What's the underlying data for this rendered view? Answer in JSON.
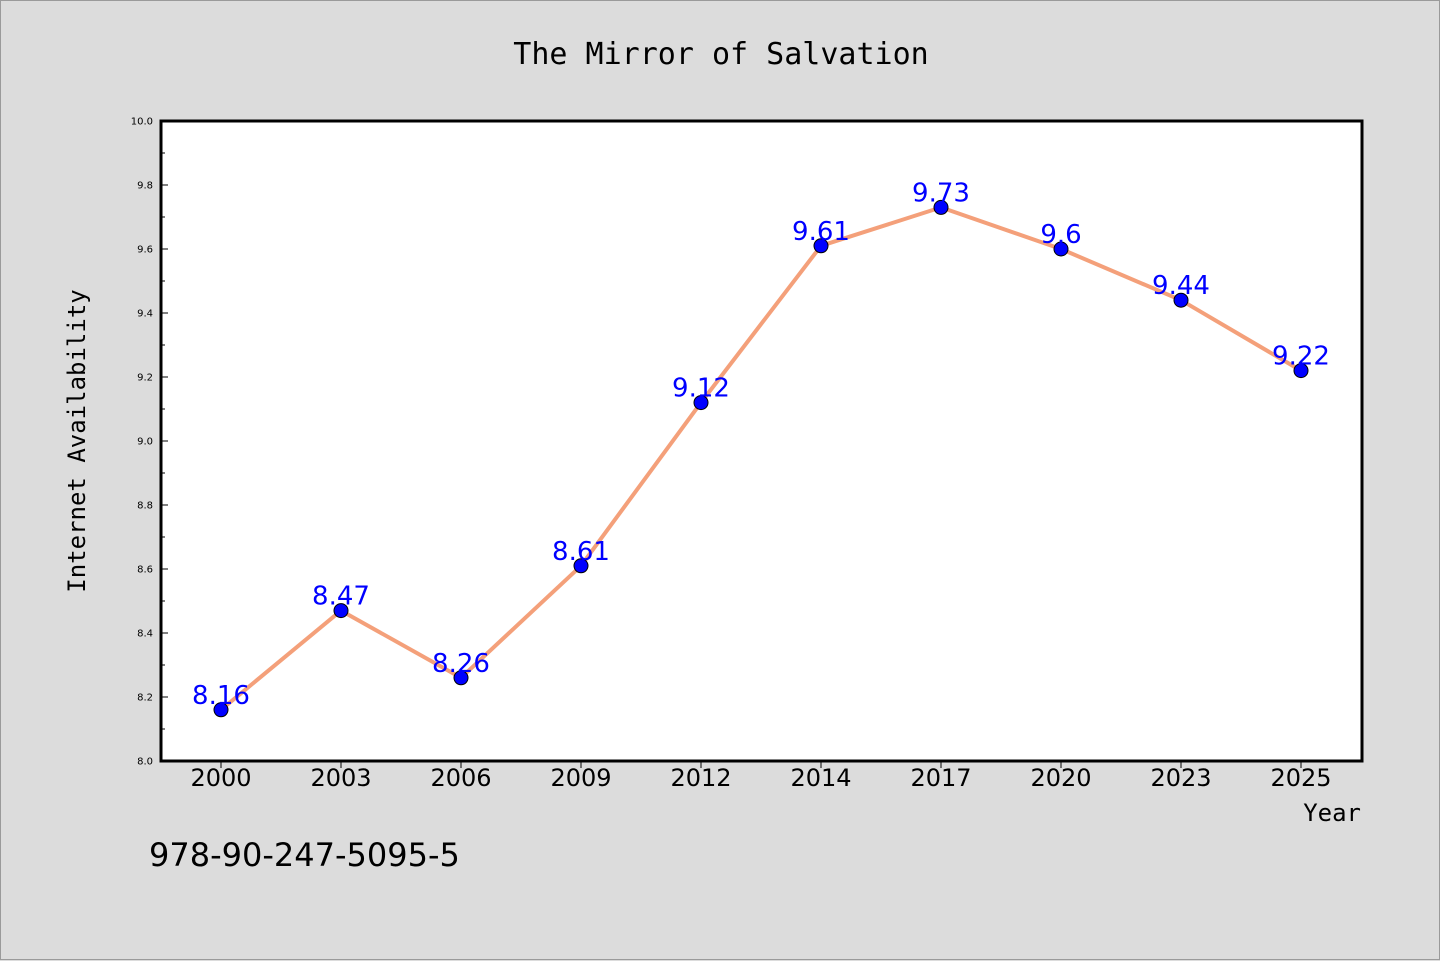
{
  "chart_data": {
    "type": "line",
    "title": "The Mirror of Salvation",
    "xlabel": "Year",
    "ylabel": "Internet Availability",
    "categories": [
      "2000",
      "2003",
      "2006",
      "2009",
      "2012",
      "2014",
      "2017",
      "2020",
      "2023",
      "2025"
    ],
    "series": [
      {
        "values": [
          8.16,
          8.47,
          8.26,
          8.61,
          9.12,
          9.61,
          9.73,
          9.6,
          9.44,
          9.22
        ]
      }
    ],
    "data_labels": [
      "8.16",
      "8.47",
      "8.26",
      "8.61",
      "9.12",
      "9.61",
      "9.73",
      "9.6",
      "9.44",
      "9.22"
    ],
    "ylim": [
      8.0,
      10.0
    ],
    "yticks": [
      8.0,
      8.2,
      8.4,
      8.6,
      8.8,
      9.0,
      9.2,
      9.4,
      9.6,
      9.8,
      10.0
    ],
    "ytick_labels": [
      "8.0",
      "8.2",
      "8.4",
      "8.6",
      "8.8",
      "9.0",
      "9.2",
      "9.4",
      "9.6",
      "9.8",
      "10.0"
    ],
    "grid": false,
    "line_color": "#f4a07a",
    "marker_color": "#0000ff",
    "label_color": "#0000ff",
    "background": "#dcdcdc",
    "plot_background": "#ffffff"
  },
  "footer": {
    "isbn": "978-90-247-5095-5"
  }
}
